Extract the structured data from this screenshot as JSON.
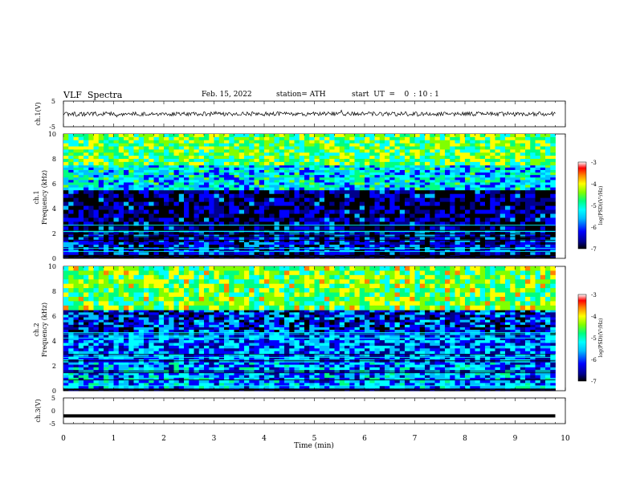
{
  "header": {
    "title": "VLF  Spectra",
    "date": "Feb. 15, 2022",
    "station": "station= ATH",
    "start": "start  UT  =    0  : 10 : 1"
  },
  "colors": {
    "spectrogram_scale": [
      "#000000",
      "#00008b",
      "#0000ff",
      "#00bfff",
      "#00ffff",
      "#00ff80",
      "#80ff00",
      "#ffff00",
      "#ff8000",
      "#ff0000",
      "#ffffff"
    ]
  },
  "chart_data": [
    {
      "type": "line",
      "panel": "ch1-waveform",
      "ylabel": "ch.1(V)",
      "ylim": [
        -5,
        5
      ],
      "yticks": [
        "5",
        "-5"
      ],
      "x": [
        0,
        1,
        2,
        3,
        4,
        5,
        6,
        7,
        8,
        9,
        9.8
      ],
      "y": [
        0,
        0,
        0,
        0,
        0,
        0,
        0,
        0,
        0,
        0,
        0
      ]
    },
    {
      "type": "heatmap",
      "panel": "ch1-spectrogram",
      "ylabel_top": "ch.1",
      "ylabel": "Frequency  (kHz)",
      "ylim": [
        0,
        10
      ],
      "xlim": [
        0,
        10
      ],
      "data_xmax": 9.8,
      "yticks": [
        "0",
        "2",
        "4",
        "6",
        "8",
        "10"
      ],
      "colorbar": {
        "label": "log(PSD)(V²/Hz)",
        "ticks": [
          "-3",
          "-4",
          "-5",
          "-6",
          "-7"
        ],
        "range": [
          -7,
          -3
        ]
      },
      "bands": [
        {
          "f": [
            0,
            0.3
          ],
          "level": -7
        },
        {
          "f": [
            0.3,
            2.3
          ],
          "level": -6.2
        },
        {
          "f": [
            2.3,
            5.5
          ],
          "level": -6.5
        },
        {
          "f": [
            5.5,
            7.5
          ],
          "level": -5.3
        },
        {
          "f": [
            7.5,
            10
          ],
          "level": -4.6
        }
      ]
    },
    {
      "type": "heatmap",
      "panel": "ch2-spectrogram",
      "ylabel_top": "ch.2",
      "ylabel": "Frequency  (kHz)",
      "ylim": [
        0,
        10
      ],
      "xlim": [
        0,
        10
      ],
      "data_xmax": 9.8,
      "yticks": [
        "0",
        "2",
        "4",
        "6",
        "8",
        "10"
      ],
      "colorbar": {
        "label": "log(PSD)(V²/Hz)",
        "ticks": [
          "-3",
          "-4",
          "-5",
          "-6",
          "-7"
        ],
        "range": [
          -7,
          -3
        ]
      },
      "bands": [
        {
          "f": [
            0,
            0.2
          ],
          "level": -7
        },
        {
          "f": [
            0.2,
            2.3
          ],
          "level": -5.6
        },
        {
          "f": [
            2.3,
            4.5
          ],
          "level": -5.8
        },
        {
          "f": [
            4.5,
            6.5
          ],
          "level": -6.1
        },
        {
          "f": [
            6.5,
            10
          ],
          "level": -4.5
        }
      ]
    },
    {
      "type": "line",
      "panel": "ch3-waveform",
      "ylabel": "ch.3(V)",
      "ylim": [
        -5,
        5
      ],
      "yticks": [
        "5",
        "0",
        "-5"
      ],
      "xlabel": "Time  (min)",
      "xticks": [
        "0",
        "1",
        "2",
        "3",
        "4",
        "5",
        "6",
        "7",
        "8",
        "9",
        "10"
      ],
      "x": [
        0,
        9.8
      ],
      "y": [
        -2,
        -2
      ]
    }
  ]
}
